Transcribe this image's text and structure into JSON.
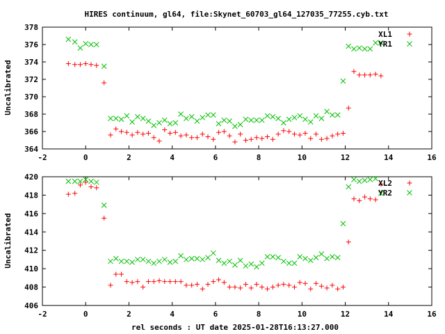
{
  "title": "HIRES continuum, gl64, file:Skynet_60703_gl64_127035_77255.cyb.txt",
  "xlabel": "rel seconds : UT date 2025-01-28T16:13:27.000",
  "colors": {
    "red": "#ff0000",
    "green": "#00c000",
    "axis": "#000000"
  },
  "chart_data": [
    {
      "type": "scatter",
      "ylabel": "Uncalibrated",
      "xlim": [
        -2,
        16
      ],
      "ylim": [
        364,
        378
      ],
      "xticks": [
        -2,
        0,
        2,
        4,
        6,
        8,
        10,
        12,
        14,
        16
      ],
      "yticks": [
        364,
        366,
        368,
        370,
        372,
        374,
        376,
        378
      ],
      "legend_position": "top-right",
      "series": [
        {
          "name": "XL1",
          "marker": "plus",
          "color": "#ff0000",
          "points": [
            [
              -0.8,
              373.8
            ],
            [
              -0.5,
              373.7
            ],
            [
              -0.25,
              373.7
            ],
            [
              0.0,
              373.8
            ],
            [
              0.25,
              373.7
            ],
            [
              0.5,
              373.6
            ],
            [
              0.85,
              371.6
            ],
            [
              1.15,
              365.6
            ],
            [
              1.4,
              366.3
            ],
            [
              1.65,
              366.0
            ],
            [
              1.9,
              365.9
            ],
            [
              2.15,
              365.6
            ],
            [
              2.4,
              365.9
            ],
            [
              2.65,
              365.7
            ],
            [
              2.9,
              365.8
            ],
            [
              3.15,
              365.3
            ],
            [
              3.4,
              364.9
            ],
            [
              3.65,
              366.2
            ],
            [
              3.9,
              365.8
            ],
            [
              4.15,
              365.9
            ],
            [
              4.4,
              365.5
            ],
            [
              4.65,
              365.6
            ],
            [
              4.9,
              365.3
            ],
            [
              5.15,
              365.3
            ],
            [
              5.4,
              365.7
            ],
            [
              5.65,
              365.4
            ],
            [
              5.9,
              365.1
            ],
            [
              6.15,
              365.9
            ],
            [
              6.4,
              366.0
            ],
            [
              6.65,
              365.5
            ],
            [
              6.9,
              364.8
            ],
            [
              7.15,
              365.7
            ],
            [
              7.4,
              365.0
            ],
            [
              7.65,
              365.1
            ],
            [
              7.9,
              365.3
            ],
            [
              8.15,
              365.2
            ],
            [
              8.4,
              365.4
            ],
            [
              8.65,
              365.1
            ],
            [
              8.9,
              365.7
            ],
            [
              9.15,
              366.1
            ],
            [
              9.4,
              366.0
            ],
            [
              9.65,
              365.7
            ],
            [
              9.9,
              365.6
            ],
            [
              10.15,
              365.8
            ],
            [
              10.4,
              365.2
            ],
            [
              10.65,
              365.7
            ],
            [
              10.9,
              365.1
            ],
            [
              11.15,
              365.2
            ],
            [
              11.4,
              365.5
            ],
            [
              11.65,
              365.7
            ],
            [
              11.9,
              365.8
            ],
            [
              12.15,
              368.7
            ],
            [
              12.4,
              372.9
            ],
            [
              12.65,
              372.5
            ],
            [
              12.9,
              372.5
            ],
            [
              13.15,
              372.5
            ],
            [
              13.4,
              372.6
            ],
            [
              13.65,
              372.4
            ]
          ]
        },
        {
          "name": "YR1",
          "marker": "cross",
          "color": "#00c000",
          "points": [
            [
              -0.8,
              376.6
            ],
            [
              -0.5,
              376.3
            ],
            [
              -0.25,
              375.6
            ],
            [
              0.0,
              376.1
            ],
            [
              0.25,
              376.0
            ],
            [
              0.5,
              376.0
            ],
            [
              0.85,
              373.5
            ],
            [
              1.15,
              367.5
            ],
            [
              1.4,
              367.5
            ],
            [
              1.65,
              367.4
            ],
            [
              1.9,
              367.8
            ],
            [
              2.15,
              367.1
            ],
            [
              2.4,
              367.7
            ],
            [
              2.65,
              367.5
            ],
            [
              2.9,
              367.2
            ],
            [
              3.15,
              366.7
            ],
            [
              3.4,
              367.0
            ],
            [
              3.65,
              367.3
            ],
            [
              3.9,
              366.9
            ],
            [
              4.15,
              367.0
            ],
            [
              4.4,
              368.0
            ],
            [
              4.65,
              367.5
            ],
            [
              4.9,
              367.7
            ],
            [
              5.15,
              367.2
            ],
            [
              5.4,
              367.6
            ],
            [
              5.65,
              367.9
            ],
            [
              5.9,
              367.9
            ],
            [
              6.15,
              366.9
            ],
            [
              6.4,
              367.3
            ],
            [
              6.65,
              367.2
            ],
            [
              6.9,
              366.6
            ],
            [
              7.15,
              366.8
            ],
            [
              7.4,
              367.4
            ],
            [
              7.65,
              367.3
            ],
            [
              7.9,
              367.3
            ],
            [
              8.15,
              367.3
            ],
            [
              8.4,
              367.8
            ],
            [
              8.65,
              367.7
            ],
            [
              8.9,
              367.5
            ],
            [
              9.15,
              367.0
            ],
            [
              9.4,
              367.4
            ],
            [
              9.65,
              367.6
            ],
            [
              9.9,
              367.8
            ],
            [
              10.15,
              367.4
            ],
            [
              10.4,
              367.1
            ],
            [
              10.65,
              367.8
            ],
            [
              10.9,
              367.5
            ],
            [
              11.15,
              368.3
            ],
            [
              11.4,
              367.9
            ],
            [
              11.65,
              367.9
            ],
            [
              11.9,
              371.8
            ],
            [
              12.15,
              375.8
            ],
            [
              12.4,
              375.5
            ],
            [
              12.65,
              375.6
            ],
            [
              12.9,
              375.5
            ],
            [
              13.15,
              375.5
            ],
            [
              13.4,
              376.2
            ],
            [
              13.65,
              376.2
            ]
          ]
        }
      ]
    },
    {
      "type": "scatter",
      "ylabel": "Uncalibrated",
      "xlim": [
        -2,
        16
      ],
      "ylim": [
        406,
        420
      ],
      "xticks": [
        -2,
        0,
        2,
        4,
        6,
        8,
        10,
        12,
        14,
        16
      ],
      "yticks": [
        406,
        408,
        410,
        412,
        414,
        416,
        418,
        420
      ],
      "legend_position": "top-right",
      "series": [
        {
          "name": "XL2",
          "marker": "plus",
          "color": "#ff0000",
          "points": [
            [
              -0.8,
              418.1
            ],
            [
              -0.5,
              418.2
            ],
            [
              -0.25,
              419.1
            ],
            [
              0.0,
              419.4
            ],
            [
              0.25,
              418.9
            ],
            [
              0.5,
              418.8
            ],
            [
              0.85,
              415.5
            ],
            [
              1.15,
              408.2
            ],
            [
              1.4,
              409.4
            ],
            [
              1.65,
              409.4
            ],
            [
              1.9,
              408.6
            ],
            [
              2.15,
              408.5
            ],
            [
              2.4,
              408.6
            ],
            [
              2.65,
              408.0
            ],
            [
              2.9,
              408.6
            ],
            [
              3.15,
              408.6
            ],
            [
              3.4,
              408.7
            ],
            [
              3.65,
              408.6
            ],
            [
              3.9,
              408.6
            ],
            [
              4.15,
              408.6
            ],
            [
              4.4,
              408.6
            ],
            [
              4.65,
              408.2
            ],
            [
              4.9,
              408.2
            ],
            [
              5.15,
              408.3
            ],
            [
              5.4,
              407.8
            ],
            [
              5.65,
              408.3
            ],
            [
              5.9,
              408.6
            ],
            [
              6.15,
              408.8
            ],
            [
              6.4,
              408.5
            ],
            [
              6.65,
              408.0
            ],
            [
              6.9,
              408.0
            ],
            [
              7.15,
              407.9
            ],
            [
              7.4,
              408.3
            ],
            [
              7.65,
              407.9
            ],
            [
              7.9,
              408.3
            ],
            [
              8.15,
              408.0
            ],
            [
              8.4,
              407.8
            ],
            [
              8.65,
              408.0
            ],
            [
              8.9,
              408.2
            ],
            [
              9.15,
              408.3
            ],
            [
              9.4,
              408.2
            ],
            [
              9.65,
              408.0
            ],
            [
              9.9,
              408.5
            ],
            [
              10.15,
              408.4
            ],
            [
              10.4,
              407.8
            ],
            [
              10.65,
              408.4
            ],
            [
              10.9,
              408.1
            ],
            [
              11.15,
              407.9
            ],
            [
              11.4,
              408.2
            ],
            [
              11.65,
              407.8
            ],
            [
              11.9,
              408.0
            ],
            [
              12.15,
              412.9
            ],
            [
              12.4,
              417.6
            ],
            [
              12.65,
              417.4
            ],
            [
              12.9,
              417.8
            ],
            [
              13.15,
              417.6
            ],
            [
              13.4,
              417.5
            ],
            [
              13.65,
              419.2
            ]
          ]
        },
        {
          "name": "YR2",
          "marker": "cross",
          "color": "#00c000",
          "points": [
            [
              -0.8,
              419.5
            ],
            [
              -0.5,
              419.5
            ],
            [
              -0.25,
              419.5
            ],
            [
              0.0,
              419.7
            ],
            [
              0.25,
              419.5
            ],
            [
              0.5,
              419.4
            ],
            [
              0.85,
              416.9
            ],
            [
              1.15,
              410.8
            ],
            [
              1.4,
              411.1
            ],
            [
              1.65,
              410.8
            ],
            [
              1.9,
              410.8
            ],
            [
              2.15,
              410.7
            ],
            [
              2.4,
              411.0
            ],
            [
              2.65,
              411.0
            ],
            [
              2.9,
              410.8
            ],
            [
              3.15,
              410.6
            ],
            [
              3.4,
              410.8
            ],
            [
              3.65,
              411.0
            ],
            [
              3.9,
              410.7
            ],
            [
              4.15,
              410.8
            ],
            [
              4.4,
              411.4
            ],
            [
              4.65,
              411.0
            ],
            [
              4.9,
              411.1
            ],
            [
              5.15,
              411.1
            ],
            [
              5.4,
              411.0
            ],
            [
              5.65,
              411.2
            ],
            [
              5.9,
              411.7
            ],
            [
              6.15,
              410.9
            ],
            [
              6.4,
              410.6
            ],
            [
              6.65,
              410.8
            ],
            [
              6.9,
              410.4
            ],
            [
              7.15,
              410.9
            ],
            [
              7.4,
              410.3
            ],
            [
              7.65,
              410.5
            ],
            [
              7.9,
              410.2
            ],
            [
              8.15,
              410.6
            ],
            [
              8.4,
              411.3
            ],
            [
              8.65,
              411.3
            ],
            [
              8.9,
              411.2
            ],
            [
              9.15,
              410.8
            ],
            [
              9.4,
              410.6
            ],
            [
              9.65,
              410.6
            ],
            [
              9.9,
              411.3
            ],
            [
              10.15,
              411.1
            ],
            [
              10.4,
              410.9
            ],
            [
              10.65,
              411.2
            ],
            [
              10.9,
              411.6
            ],
            [
              11.15,
              411.1
            ],
            [
              11.4,
              411.3
            ],
            [
              11.65,
              411.2
            ],
            [
              11.9,
              414.9
            ],
            [
              12.15,
              418.9
            ],
            [
              12.4,
              419.7
            ],
            [
              12.65,
              419.5
            ],
            [
              12.9,
              419.6
            ],
            [
              13.15,
              419.7
            ],
            [
              13.4,
              419.8
            ],
            [
              13.65,
              418.2
            ]
          ]
        }
      ]
    }
  ]
}
